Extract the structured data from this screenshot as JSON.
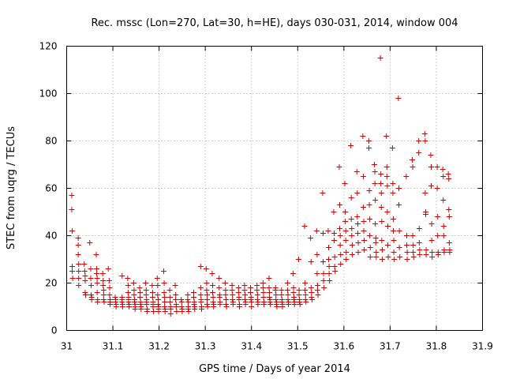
{
  "chart_data": {
    "type": "scatter",
    "title": "Rec. mssc (Lon=270, Lat=30, h=HE), days 030-031, 2014, window 004",
    "xlabel": "GPS time / Days of year 2014",
    "ylabel": "STEC from uqrg / TECUs",
    "xlim": [
      31,
      31.9
    ],
    "ylim": [
      0,
      120
    ],
    "xticks": [
      "31",
      "31.1",
      "31.2",
      "31.3",
      "31.4",
      "31.5",
      "31.6",
      "31.7",
      "31.8",
      "31.9"
    ],
    "yticks": [
      "0",
      "20",
      "40",
      "60",
      "80",
      "100",
      "120"
    ],
    "grid": true,
    "legend": "none",
    "marker": "+",
    "color": "#d40000",
    "points": [
      [
        31.011,
        57
      ],
      [
        31.011,
        51
      ],
      [
        31.012,
        42
      ],
      [
        31.012,
        27
      ],
      [
        31.012,
        25
      ],
      [
        31.013,
        22
      ],
      [
        31.025,
        39
      ],
      [
        31.025,
        36
      ],
      [
        31.025,
        32
      ],
      [
        31.026,
        28
      ],
      [
        31.026,
        25
      ],
      [
        31.026,
        22
      ],
      [
        31.026,
        19
      ],
      [
        31.038,
        28
      ],
      [
        31.039,
        25
      ],
      [
        31.04,
        23
      ],
      [
        31.04,
        21
      ],
      [
        31.04,
        16
      ],
      [
        31.041,
        15
      ],
      [
        31.05,
        37
      ],
      [
        31.052,
        26
      ],
      [
        31.052,
        22
      ],
      [
        31.053,
        19
      ],
      [
        31.053,
        15
      ],
      [
        31.054,
        14
      ],
      [
        31.054,
        13
      ],
      [
        31.064,
        32
      ],
      [
        31.065,
        26
      ],
      [
        31.065,
        24
      ],
      [
        31.066,
        22
      ],
      [
        31.066,
        20
      ],
      [
        31.066,
        16
      ],
      [
        31.067,
        13
      ],
      [
        31.067,
        12
      ],
      [
        31.078,
        24
      ],
      [
        31.079,
        21
      ],
      [
        31.079,
        19
      ],
      [
        31.08,
        17
      ],
      [
        31.08,
        15
      ],
      [
        31.08,
        13
      ],
      [
        31.081,
        12
      ],
      [
        31.09,
        26
      ],
      [
        31.092,
        21
      ],
      [
        31.093,
        18
      ],
      [
        31.093,
        15
      ],
      [
        31.094,
        13
      ],
      [
        31.094,
        12
      ],
      [
        31.094,
        11
      ],
      [
        31.105,
        14
      ],
      [
        31.106,
        13
      ],
      [
        31.106,
        12
      ],
      [
        31.107,
        11
      ],
      [
        31.107,
        10
      ],
      [
        31.12,
        23
      ],
      [
        31.12,
        14
      ],
      [
        31.12,
        13
      ],
      [
        31.12,
        12
      ],
      [
        31.121,
        11
      ],
      [
        31.121,
        10
      ],
      [
        31.132,
        22
      ],
      [
        31.133,
        19
      ],
      [
        31.133,
        16
      ],
      [
        31.134,
        14
      ],
      [
        31.134,
        13
      ],
      [
        31.134,
        12
      ],
      [
        31.135,
        11
      ],
      [
        31.135,
        10
      ],
      [
        31.145,
        20
      ],
      [
        31.146,
        17
      ],
      [
        31.146,
        15
      ],
      [
        31.147,
        13
      ],
      [
        31.147,
        12
      ],
      [
        31.148,
        11
      ],
      [
        31.148,
        10
      ],
      [
        31.148,
        9
      ],
      [
        31.158,
        18
      ],
      [
        31.159,
        16
      ],
      [
        31.159,
        14
      ],
      [
        31.16,
        12
      ],
      [
        31.16,
        11
      ],
      [
        31.161,
        10
      ],
      [
        31.161,
        9
      ],
      [
        31.171,
        20
      ],
      [
        31.172,
        17
      ],
      [
        31.172,
        15
      ],
      [
        31.173,
        13
      ],
      [
        31.173,
        12
      ],
      [
        31.173,
        11
      ],
      [
        31.174,
        9
      ],
      [
        31.174,
        8
      ],
      [
        31.185,
        19
      ],
      [
        31.186,
        16
      ],
      [
        31.186,
        14
      ],
      [
        31.187,
        12
      ],
      [
        31.187,
        11
      ],
      [
        31.187,
        10
      ],
      [
        31.188,
        8
      ],
      [
        31.196,
        22
      ],
      [
        31.197,
        19
      ],
      [
        31.197,
        15
      ],
      [
        31.198,
        13
      ],
      [
        31.198,
        11
      ],
      [
        31.199,
        10
      ],
      [
        31.199,
        9
      ],
      [
        31.199,
        8
      ],
      [
        31.21,
        25
      ],
      [
        31.211,
        20
      ],
      [
        31.211,
        16
      ],
      [
        31.212,
        14
      ],
      [
        31.212,
        12
      ],
      [
        31.212,
        10
      ],
      [
        31.213,
        9
      ],
      [
        31.213,
        8
      ],
      [
        31.223,
        17
      ],
      [
        31.224,
        14
      ],
      [
        31.224,
        12
      ],
      [
        31.225,
        10
      ],
      [
        31.225,
        9
      ],
      [
        31.225,
        7
      ],
      [
        31.235,
        19
      ],
      [
        31.236,
        15
      ],
      [
        31.236,
        13
      ],
      [
        31.237,
        11
      ],
      [
        31.237,
        10
      ],
      [
        31.238,
        8
      ],
      [
        31.248,
        13
      ],
      [
        31.249,
        12
      ],
      [
        31.249,
        10
      ],
      [
        31.25,
        9
      ],
      [
        31.25,
        8
      ],
      [
        31.262,
        15
      ],
      [
        31.262,
        13
      ],
      [
        31.263,
        12
      ],
      [
        31.263,
        10
      ],
      [
        31.263,
        9
      ],
      [
        31.264,
        8
      ],
      [
        31.275,
        16
      ],
      [
        31.275,
        14
      ],
      [
        31.276,
        12
      ],
      [
        31.276,
        11
      ],
      [
        31.277,
        10
      ],
      [
        31.277,
        9
      ],
      [
        31.29,
        27
      ],
      [
        31.29,
        18
      ],
      [
        31.29,
        15
      ],
      [
        31.291,
        13
      ],
      [
        31.291,
        12
      ],
      [
        31.292,
        10
      ],
      [
        31.292,
        9
      ],
      [
        31.302,
        26
      ],
      [
        31.303,
        20
      ],
      [
        31.303,
        17
      ],
      [
        31.304,
        15
      ],
      [
        31.304,
        13
      ],
      [
        31.304,
        11
      ],
      [
        31.305,
        10
      ],
      [
        31.315,
        24
      ],
      [
        31.316,
        19
      ],
      [
        31.316,
        16
      ],
      [
        31.317,
        14
      ],
      [
        31.317,
        12
      ],
      [
        31.318,
        11
      ],
      [
        31.318,
        10
      ],
      [
        31.33,
        22
      ],
      [
        31.33,
        18
      ],
      [
        31.331,
        15
      ],
      [
        31.331,
        14
      ],
      [
        31.332,
        12
      ],
      [
        31.332,
        11
      ],
      [
        31.343,
        20
      ],
      [
        31.344,
        17
      ],
      [
        31.344,
        15
      ],
      [
        31.345,
        13
      ],
      [
        31.345,
        11
      ],
      [
        31.346,
        10
      ],
      [
        31.358,
        19
      ],
      [
        31.358,
        17
      ],
      [
        31.359,
        15
      ],
      [
        31.359,
        13
      ],
      [
        31.36,
        12
      ],
      [
        31.36,
        11
      ],
      [
        31.372,
        18
      ],
      [
        31.372,
        16
      ],
      [
        31.373,
        14
      ],
      [
        31.373,
        13
      ],
      [
        31.374,
        11
      ],
      [
        31.374,
        10
      ],
      [
        31.385,
        19
      ],
      [
        31.385,
        17
      ],
      [
        31.386,
        15
      ],
      [
        31.386,
        13
      ],
      [
        31.387,
        12
      ],
      [
        31.387,
        11
      ],
      [
        31.398,
        18
      ],
      [
        31.398,
        16
      ],
      [
        31.399,
        14
      ],
      [
        31.399,
        13
      ],
      [
        31.4,
        12
      ],
      [
        31.4,
        10
      ],
      [
        31.412,
        19
      ],
      [
        31.412,
        17
      ],
      [
        31.413,
        15
      ],
      [
        31.413,
        13
      ],
      [
        31.414,
        12
      ],
      [
        31.414,
        11
      ],
      [
        31.425,
        20
      ],
      [
        31.425,
        18
      ],
      [
        31.426,
        16
      ],
      [
        31.426,
        14
      ],
      [
        31.427,
        12
      ],
      [
        31.427,
        11
      ],
      [
        31.438,
        22
      ],
      [
        31.438,
        18
      ],
      [
        31.439,
        16
      ],
      [
        31.439,
        14
      ],
      [
        31.44,
        13
      ],
      [
        31.44,
        12
      ],
      [
        31.441,
        11
      ],
      [
        31.452,
        18
      ],
      [
        31.452,
        17
      ],
      [
        31.453,
        15
      ],
      [
        31.453,
        13
      ],
      [
        31.454,
        12
      ],
      [
        31.454,
        11
      ],
      [
        31.455,
        10
      ],
      [
        31.465,
        17
      ],
      [
        31.465,
        15
      ],
      [
        31.466,
        13
      ],
      [
        31.466,
        12
      ],
      [
        31.467,
        11
      ],
      [
        31.467,
        10
      ],
      [
        31.478,
        20
      ],
      [
        31.478,
        17
      ],
      [
        31.479,
        15
      ],
      [
        31.479,
        13
      ],
      [
        31.48,
        12
      ],
      [
        31.48,
        11
      ],
      [
        31.49,
        24
      ],
      [
        31.491,
        18
      ],
      [
        31.491,
        16
      ],
      [
        31.492,
        14
      ],
      [
        31.492,
        13
      ],
      [
        31.493,
        12
      ],
      [
        31.493,
        11
      ],
      [
        31.502,
        30
      ],
      [
        31.503,
        17
      ],
      [
        31.503,
        15
      ],
      [
        31.504,
        13
      ],
      [
        31.504,
        12
      ],
      [
        31.505,
        11
      ],
      [
        31.515,
        44
      ],
      [
        31.516,
        20
      ],
      [
        31.516,
        17
      ],
      [
        31.517,
        15
      ],
      [
        31.517,
        13
      ],
      [
        31.518,
        12
      ],
      [
        31.528,
        39
      ],
      [
        31.529,
        29
      ],
      [
        31.529,
        18
      ],
      [
        31.53,
        16
      ],
      [
        31.53,
        14
      ],
      [
        31.531,
        13
      ],
      [
        31.541,
        42
      ],
      [
        31.542,
        32
      ],
      [
        31.542,
        24
      ],
      [
        31.543,
        19
      ],
      [
        31.543,
        17
      ],
      [
        31.544,
        15
      ],
      [
        31.554,
        58
      ],
      [
        31.555,
        41
      ],
      [
        31.555,
        29
      ],
      [
        31.556,
        24
      ],
      [
        31.556,
        21
      ],
      [
        31.557,
        18
      ],
      [
        31.566,
        42
      ],
      [
        31.567,
        35
      ],
      [
        31.567,
        30
      ],
      [
        31.568,
        27
      ],
      [
        31.568,
        24
      ],
      [
        31.569,
        21
      ],
      [
        31.578,
        50
      ],
      [
        31.579,
        41
      ],
      [
        31.579,
        38
      ],
      [
        31.58,
        31
      ],
      [
        31.58,
        27
      ],
      [
        31.581,
        25
      ],
      [
        31.59,
        69
      ],
      [
        31.591,
        53
      ],
      [
        31.591,
        43
      ],
      [
        31.592,
        40
      ],
      [
        31.592,
        36
      ],
      [
        31.593,
        32
      ],
      [
        31.593,
        28
      ],
      [
        31.602,
        62
      ],
      [
        31.603,
        50
      ],
      [
        31.603,
        46
      ],
      [
        31.604,
        42
      ],
      [
        31.604,
        38
      ],
      [
        31.605,
        33
      ],
      [
        31.605,
        30
      ],
      [
        31.615,
        78
      ],
      [
        31.616,
        56
      ],
      [
        31.616,
        47
      ],
      [
        31.617,
        43
      ],
      [
        31.617,
        40
      ],
      [
        31.618,
        36
      ],
      [
        31.618,
        32
      ],
      [
        31.628,
        67
      ],
      [
        31.629,
        58
      ],
      [
        31.629,
        48
      ],
      [
        31.63,
        45
      ],
      [
        31.63,
        41
      ],
      [
        31.631,
        37
      ],
      [
        31.631,
        33
      ],
      [
        31.641,
        82
      ],
      [
        31.642,
        65
      ],
      [
        31.642,
        52
      ],
      [
        31.643,
        46
      ],
      [
        31.643,
        42
      ],
      [
        31.644,
        38
      ],
      [
        31.644,
        34
      ],
      [
        31.654,
        80
      ],
      [
        31.654,
        77
      ],
      [
        31.655,
        59
      ],
      [
        31.655,
        53
      ],
      [
        31.656,
        47
      ],
      [
        31.656,
        40
      ],
      [
        31.657,
        35
      ],
      [
        31.657,
        31
      ],
      [
        31.666,
        70
      ],
      [
        31.667,
        67
      ],
      [
        31.667,
        62
      ],
      [
        31.668,
        55
      ],
      [
        31.668,
        45
      ],
      [
        31.669,
        39
      ],
      [
        31.669,
        37
      ],
      [
        31.67,
        33
      ],
      [
        31.67,
        31
      ],
      [
        31.679,
        115
      ],
      [
        31.68,
        66
      ],
      [
        31.68,
        62
      ],
      [
        31.681,
        58
      ],
      [
        31.681,
        52
      ],
      [
        31.682,
        46
      ],
      [
        31.682,
        38
      ],
      [
        31.683,
        34
      ],
      [
        31.683,
        30
      ],
      [
        31.692,
        82
      ],
      [
        31.693,
        69
      ],
      [
        31.693,
        65
      ],
      [
        31.694,
        61
      ],
      [
        31.694,
        50
      ],
      [
        31.695,
        44
      ],
      [
        31.695,
        36
      ],
      [
        31.696,
        31
      ],
      [
        31.705,
        77
      ],
      [
        31.706,
        62
      ],
      [
        31.706,
        58
      ],
      [
        31.707,
        47
      ],
      [
        31.707,
        42
      ],
      [
        31.708,
        38
      ],
      [
        31.708,
        33
      ],
      [
        31.709,
        30
      ],
      [
        31.718,
        98
      ],
      [
        31.719,
        60
      ],
      [
        31.719,
        53
      ],
      [
        31.72,
        42
      ],
      [
        31.72,
        35
      ],
      [
        31.721,
        31
      ],
      [
        31.735,
        65
      ],
      [
        31.736,
        40
      ],
      [
        31.736,
        36
      ],
      [
        31.737,
        33
      ],
      [
        31.737,
        30
      ],
      [
        31.748,
        72
      ],
      [
        31.749,
        69
      ],
      [
        31.749,
        40
      ],
      [
        31.75,
        36
      ],
      [
        31.75,
        33
      ],
      [
        31.751,
        31
      ],
      [
        31.762,
        80
      ],
      [
        31.762,
        75
      ],
      [
        31.763,
        43
      ],
      [
        31.763,
        37
      ],
      [
        31.764,
        34
      ],
      [
        31.764,
        32
      ],
      [
        31.775,
        83
      ],
      [
        31.776,
        80
      ],
      [
        31.776,
        58
      ],
      [
        31.777,
        50
      ],
      [
        31.777,
        49
      ],
      [
        31.778,
        34
      ],
      [
        31.778,
        32
      ],
      [
        31.788,
        74
      ],
      [
        31.789,
        69
      ],
      [
        31.789,
        61
      ],
      [
        31.79,
        45
      ],
      [
        31.79,
        38
      ],
      [
        31.791,
        33
      ],
      [
        31.791,
        31
      ],
      [
        31.802,
        69
      ],
      [
        31.802,
        60
      ],
      [
        31.803,
        48
      ],
      [
        31.803,
        40
      ],
      [
        31.804,
        33
      ],
      [
        31.804,
        32
      ],
      [
        31.814,
        68
      ],
      [
        31.815,
        65
      ],
      [
        31.815,
        55
      ],
      [
        31.816,
        44
      ],
      [
        31.816,
        40
      ],
      [
        31.817,
        34
      ],
      [
        31.817,
        33
      ],
      [
        31.826,
        66
      ],
      [
        31.827,
        64
      ],
      [
        31.827,
        51
      ],
      [
        31.828,
        48
      ],
      [
        31.828,
        37
      ],
      [
        31.829,
        34
      ],
      [
        31.829,
        33
      ]
    ]
  }
}
